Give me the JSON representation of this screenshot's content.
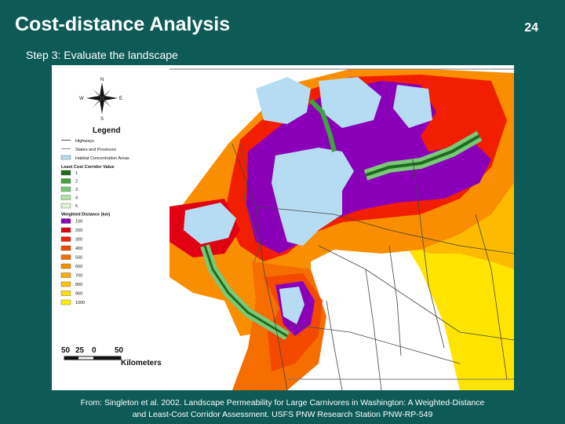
{
  "slide": {
    "title": "Cost-distance Analysis",
    "number": "24",
    "subtitle": "Step 3: Evaluate the landscape"
  },
  "compass": {
    "n": "N",
    "s": "S",
    "e": "E",
    "w": "W"
  },
  "legend": {
    "title": "Legend",
    "items": [
      {
        "label": "Highways",
        "color": "#555555"
      },
      {
        "label": "States and Provinces",
        "color": "#888888"
      },
      {
        "label": "Habitat Concentration Areas",
        "color": "#b6dcf3"
      }
    ],
    "corridor_header": "Least Cost Corridor Value",
    "corridor": [
      {
        "label": "1",
        "color": "#1f6b1f"
      },
      {
        "label": "2",
        "color": "#3fa33f"
      },
      {
        "label": "3",
        "color": "#79c979"
      },
      {
        "label": "4",
        "color": "#b0e0a8"
      },
      {
        "label": "5",
        "color": "#ddf2d6"
      }
    ],
    "distance_header": "Weighted Distance (km)",
    "distance": [
      {
        "label": "100",
        "color": "#8a00b8"
      },
      {
        "label": "200",
        "color": "#e00012"
      },
      {
        "label": "300",
        "color": "#f21e00"
      },
      {
        "label": "400",
        "color": "#f44a00"
      },
      {
        "label": "500",
        "color": "#f66d00"
      },
      {
        "label": "600",
        "color": "#f98e00"
      },
      {
        "label": "700",
        "color": "#fbab00"
      },
      {
        "label": "800",
        "color": "#fdc400"
      },
      {
        "label": "900",
        "color": "#ffdc00"
      },
      {
        "label": "1000",
        "color": "#ffee00"
      }
    ]
  },
  "scalebar": {
    "ticks": [
      "50",
      "25",
      "0",
      "50"
    ],
    "unit": "Kilometers"
  },
  "caption": {
    "line1": "From: Singleton et al. 2002. Landscape Permeability for Large Carnivores in Washington: A Weighted-Distance",
    "line2": "and Least-Cost Corridor Assessment. USFS PNW Research Station PNW-RP-549"
  }
}
